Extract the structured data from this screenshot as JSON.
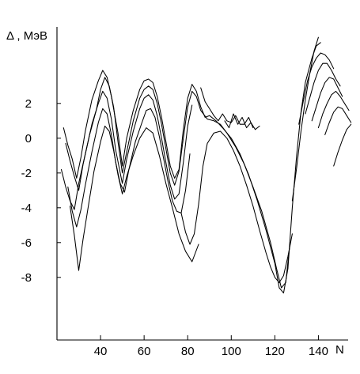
{
  "chart_data": {
    "type": "line",
    "title": "",
    "ylabel": "Δ , МэВ",
    "xlabel": "N",
    "xlim": [
      20,
      158
    ],
    "ylim": [
      -11.6,
      6.4
    ],
    "x_ticks": [
      40,
      60,
      80,
      100,
      120,
      140
    ],
    "y_ticks": [
      2,
      0,
      -2,
      -4,
      -6,
      -8
    ],
    "x_tick_labels": [
      "40",
      "60",
      "80",
      "100",
      "120",
      "140"
    ],
    "y_tick_labels": [
      "2",
      "0",
      "-2",
      "-4",
      "-6",
      "-8"
    ],
    "grid": false,
    "series": [
      {
        "x": [
          23,
          25,
          27,
          29,
          31,
          33,
          36,
          39,
          41,
          43,
          45,
          48,
          50,
          52,
          55,
          58,
          60,
          62,
          64,
          66,
          68,
          70,
          72,
          74,
          76,
          78,
          80,
          82,
          84,
          86,
          88,
          90,
          93,
          96,
          100,
          104,
          108,
          112,
          116,
          120,
          122,
          124,
          126,
          128,
          130,
          132,
          134,
          137,
          139,
          141
        ],
        "y": [
          0.6,
          -0.4,
          -1.2,
          -2.3,
          -1.1,
          0.4,
          2.2,
          3.3,
          3.9,
          3.5,
          2.4,
          0.3,
          -1.6,
          0.0,
          1.6,
          2.8,
          3.3,
          3.4,
          3.2,
          2.4,
          1.2,
          -0.2,
          -1.6,
          -2.3,
          -1.8,
          0.5,
          2.3,
          3.1,
          2.7,
          1.8,
          1.2,
          1.3,
          1.0,
          0.6,
          0.0,
          -0.9,
          -2.1,
          -3.6,
          -5.3,
          -7.2,
          -8.6,
          -8.9,
          -7.5,
          -4.0,
          -1.0,
          1.5,
          3.2,
          4.6,
          5.3,
          5.5
        ]
      },
      {
        "x": [
          24,
          26,
          28,
          30,
          32,
          35,
          38,
          40,
          42,
          44,
          46,
          48,
          50,
          52,
          55,
          58,
          60,
          62,
          64,
          66,
          68,
          70,
          72,
          74,
          76,
          78,
          80,
          82,
          84,
          86,
          89,
          92,
          95,
          98,
          102,
          106,
          110,
          114,
          118,
          121,
          123,
          125,
          127
        ],
        "y": [
          -0.3,
          -1.3,
          -2.2,
          -3.0,
          -1.5,
          0.2,
          1.6,
          2.8,
          3.5,
          3.0,
          1.8,
          -0.2,
          -2.0,
          -0.8,
          1.0,
          2.3,
          2.8,
          3.0,
          2.8,
          2.0,
          0.8,
          -0.6,
          -2.0,
          -2.7,
          -1.9,
          0.0,
          1.8,
          2.7,
          2.4,
          1.6,
          1.1,
          1.0,
          0.8,
          0.3,
          -0.5,
          -1.5,
          -2.8,
          -4.2,
          -6.0,
          -7.6,
          -8.6,
          -8.3,
          -6.0
        ]
      },
      {
        "x": [
          22,
          24,
          26,
          28,
          30,
          33,
          36,
          39,
          41,
          43,
          45,
          47,
          50,
          52,
          55,
          58,
          60,
          62,
          64,
          66,
          68,
          70,
          72,
          74,
          76,
          78,
          80,
          82
        ],
        "y": [
          -1.8,
          -2.8,
          -3.6,
          -4.1,
          -2.6,
          -0.9,
          0.8,
          2.0,
          2.7,
          2.3,
          1.1,
          -0.7,
          -2.6,
          -1.2,
          0.4,
          1.7,
          2.3,
          2.5,
          2.2,
          1.3,
          0.0,
          -1.4,
          -2.7,
          -3.5,
          -3.2,
          -1.4,
          0.7,
          1.9
        ]
      },
      {
        "x": [
          25,
          27,
          29,
          31,
          33,
          36,
          39,
          41,
          43,
          45,
          47,
          49,
          51,
          53,
          56,
          59,
          61,
          63,
          65,
          67,
          69,
          71,
          73,
          75,
          77,
          79,
          81
        ],
        "y": [
          -2.8,
          -4.2,
          -5.1,
          -4.1,
          -2.7,
          -0.8,
          0.9,
          1.7,
          1.4,
          0.2,
          -1.4,
          -2.6,
          -3.1,
          -1.8,
          -0.2,
          0.9,
          1.6,
          1.7,
          1.2,
          0.1,
          -1.2,
          -2.5,
          -3.6,
          -4.2,
          -4.3,
          -3.0,
          -0.9
        ]
      },
      {
        "x": [
          26,
          28,
          30,
          32,
          34,
          37,
          40,
          42,
          44,
          46,
          48,
          50,
          52,
          55,
          58,
          61,
          64,
          67,
          70,
          73,
          76,
          79,
          82,
          85
        ],
        "y": [
          -3.9,
          -5.6,
          -7.6,
          -5.8,
          -4.2,
          -1.9,
          -0.2,
          0.7,
          0.4,
          -0.7,
          -2.1,
          -3.2,
          -2.2,
          -1.0,
          0.0,
          0.6,
          0.3,
          -1.0,
          -2.6,
          -4.0,
          -5.5,
          -6.5,
          -7.1,
          -6.1
        ]
      },
      {
        "x": [
          77,
          79,
          81,
          83,
          85,
          87,
          89,
          92,
          95,
          98,
          101,
          104,
          107,
          110,
          113,
          116,
          118,
          120,
          122,
          124,
          126,
          128
        ],
        "y": [
          -4.3,
          -5.4,
          -6.1,
          -5.5,
          -3.8,
          -1.6,
          -0.3,
          0.3,
          0.4,
          0.0,
          -0.7,
          -1.6,
          -2.7,
          -3.9,
          -5.3,
          -6.6,
          -7.4,
          -8.0,
          -8.3,
          -7.9,
          -6.8,
          -5.5
        ]
      },
      {
        "x": [
          86,
          88,
          90,
          92,
          94,
          96,
          98,
          100,
          102,
          104,
          106,
          108,
          110
        ],
        "y": [
          2.9,
          2.1,
          1.7,
          1.3,
          1.0,
          1.4,
          1.0,
          0.9,
          1.3,
          0.8,
          0.8,
          1.2,
          0.6
        ]
      },
      {
        "x": [
          97,
          99,
          101,
          103,
          105,
          107,
          109,
          111,
          113
        ],
        "y": [
          1.0,
          0.6,
          1.4,
          0.8,
          1.2,
          0.6,
          0.9,
          0.5,
          0.7
        ]
      },
      {
        "x": [
          128,
          130,
          132,
          134,
          136,
          138,
          140
        ],
        "y": [
          -3.6,
          -1.7,
          0.4,
          2.2,
          3.7,
          5.0,
          5.8
        ]
      },
      {
        "x": [
          131,
          133,
          135,
          137,
          139,
          141,
          143,
          145,
          147
        ],
        "y": [
          0.8,
          2.1,
          3.3,
          4.1,
          4.6,
          4.9,
          4.8,
          4.5,
          4.0
        ]
      },
      {
        "x": [
          134,
          136,
          138,
          140,
          142,
          144,
          146,
          148,
          150
        ],
        "y": [
          1.4,
          2.3,
          3.2,
          3.9,
          4.3,
          4.3,
          3.9,
          3.4,
          3.0
        ]
      },
      {
        "x": [
          137,
          139,
          141,
          143,
          145,
          147,
          149,
          151
        ],
        "y": [
          1.0,
          1.8,
          2.6,
          3.2,
          3.5,
          3.4,
          2.9,
          2.4
        ]
      },
      {
        "x": [
          140,
          142,
          144,
          146,
          148,
          150,
          152,
          154
        ],
        "y": [
          0.6,
          1.4,
          2.0,
          2.5,
          2.7,
          2.4,
          2.0,
          1.6
        ]
      },
      {
        "x": [
          143,
          145,
          147,
          149,
          151,
          153,
          155
        ],
        "y": [
          0.2,
          0.9,
          1.5,
          1.8,
          1.7,
          1.3,
          0.9
        ]
      },
      {
        "x": [
          147,
          149,
          151,
          153,
          155
        ],
        "y": [
          -1.6,
          -0.8,
          -0.1,
          0.5,
          0.8
        ]
      }
    ]
  }
}
